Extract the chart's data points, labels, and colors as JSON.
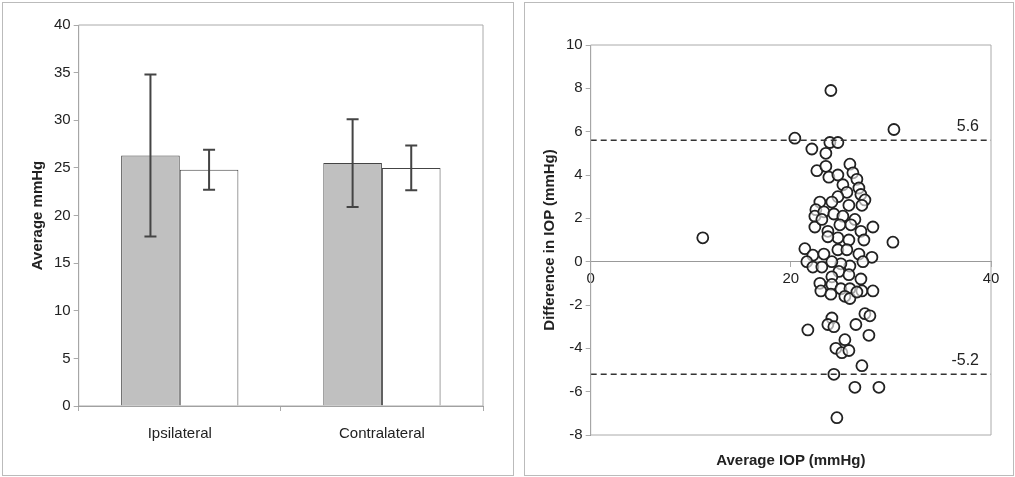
{
  "chart_data": [
    {
      "type": "bar",
      "ylabel": "Average mmHg",
      "categories": [
        "Ipsilateral",
        "Contralateral"
      ],
      "series": [
        {
          "color": "#c0c0c0",
          "values": [
            26.3,
            25.5
          ],
          "errors": [
            8.5,
            4.6
          ]
        },
        {
          "color": "#ffffff",
          "values": [
            24.8,
            25.0
          ],
          "errors": [
            2.1,
            2.35
          ]
        }
      ],
      "ylim": [
        0,
        40
      ],
      "yticks": [
        0,
        5,
        10,
        15,
        20,
        25,
        30,
        35,
        40
      ],
      "grid": false,
      "legend": false
    },
    {
      "type": "scatter",
      "xlabel": "Average IOP (mmHg)",
      "ylabel": "Difference in IOP (mmHg)",
      "marker": "circle",
      "grid": false,
      "legend": false,
      "x": [
        11.2,
        24.0,
        20.4,
        30.3,
        30.2,
        23.9,
        24.7,
        22.1,
        23.5,
        22.6,
        23.5,
        23.8,
        24.7,
        25.9,
        26.2,
        26.6,
        25.2,
        26.8,
        27.0,
        27.4,
        27.1,
        25.6,
        24.7,
        24.1,
        22.9,
        22.5,
        22.4,
        23.3,
        24.3,
        25.2,
        25.8,
        26.4,
        28.2,
        27.0,
        26.0,
        24.9,
        23.7,
        22.4,
        23.1,
        27.3,
        25.8,
        24.7,
        23.7,
        21.4,
        22.2,
        23.3,
        24.7,
        25.6,
        26.8,
        28.1,
        27.2,
        25.9,
        25.0,
        24.1,
        21.6,
        22.2,
        23.1,
        24.8,
        25.8,
        27.0,
        24.1,
        22.9,
        23.0,
        24.1,
        25.0,
        25.9,
        27.1,
        28.2,
        24.0,
        25.4,
        25.9,
        26.6,
        27.4,
        27.9,
        26.5,
        27.8,
        24.1,
        23.7,
        24.3,
        21.7,
        25.4,
        24.5,
        25.1,
        25.8,
        27.1,
        24.3,
        26.4,
        28.8,
        24.6
      ],
      "series": [
        {
          "color": "#222222",
          "values": [
            1.1,
            7.9,
            5.7,
            6.1,
            0.9,
            5.5,
            5.5,
            5.2,
            5.0,
            4.2,
            4.4,
            3.9,
            4.0,
            4.5,
            4.1,
            3.8,
            3.55,
            3.4,
            3.1,
            2.85,
            2.6,
            3.2,
            3.0,
            2.75,
            2.75,
            2.4,
            2.1,
            2.3,
            2.2,
            2.1,
            2.6,
            1.95,
            1.6,
            1.4,
            1.7,
            1.7,
            1.4,
            1.6,
            1.95,
            1.0,
            1.0,
            1.1,
            1.15,
            0.6,
            0.3,
            0.35,
            0.55,
            0.55,
            0.35,
            0.2,
            0.0,
            -0.2,
            -0.1,
            0.0,
            0.0,
            -0.25,
            -0.25,
            -0.45,
            -0.6,
            -0.8,
            -0.7,
            -1.0,
            -1.35,
            -1.05,
            -1.25,
            -1.25,
            -1.35,
            -1.35,
            -1.5,
            -1.6,
            -1.7,
            -1.4,
            -2.4,
            -2.5,
            -2.9,
            -3.4,
            -2.6,
            -2.9,
            -3.0,
            -3.15,
            -3.6,
            -4.0,
            -4.2,
            -4.1,
            -4.8,
            -5.2,
            -5.8,
            -5.8,
            -7.2
          ]
        }
      ],
      "xlim": [
        0,
        40
      ],
      "xticks": [
        0,
        20,
        40
      ],
      "ylim": [
        -8,
        10
      ],
      "yticks": [
        -8,
        -6,
        -4,
        -2,
        0,
        2,
        4,
        6,
        8,
        10
      ],
      "ref_lines": [
        {
          "axis": "y",
          "value": 5.6,
          "label": "5.6",
          "color": "#333333",
          "line_style": "dashed"
        },
        {
          "axis": "y",
          "value": -5.2,
          "label": "-5.2",
          "color": "#333333",
          "line_style": "dashed"
        }
      ]
    }
  ]
}
